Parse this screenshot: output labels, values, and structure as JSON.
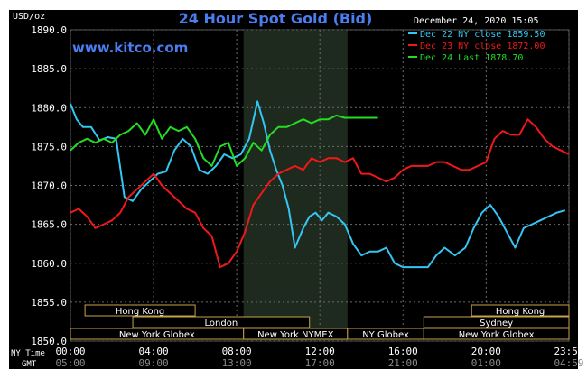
{
  "chart_data": {
    "type": "line",
    "title": "24 Hour Spot Gold (Bid)",
    "brand": "www.kitco.com",
    "ylabel": "USD/oz",
    "date_label": "December 24, 2020 15:05",
    "ylim": [
      1850,
      1890
    ],
    "y_ticks": [
      "1890.0",
      "1885.0",
      "1880.0",
      "1875.0",
      "1870.0",
      "1865.0",
      "1860.0",
      "1855.0",
      "1850.0"
    ],
    "x_row_ny_label": "NY Time",
    "x_row_gmt_label": "GMT",
    "x_ticks_ny": [
      "00:00",
      "04:00",
      "08:00",
      "12:00",
      "16:00",
      "20:00",
      "23:59"
    ],
    "x_ticks_gmt": [
      "05:00",
      "09:00",
      "13:00",
      "17:00",
      "21:00",
      "01:00",
      "04:59"
    ],
    "x_hours": [
      0,
      4,
      8,
      12,
      16,
      20,
      23.983
    ],
    "shaded_hours": [
      8.33,
      13.33
    ],
    "grid": true,
    "legend_position": "top-right",
    "sessions": [
      {
        "label": "Hong Kong",
        "start": 0.7,
        "end": 6.0,
        "row": 1
      },
      {
        "label": "Hong Kong",
        "start": 19.3,
        "end": 23.983,
        "row": 1
      },
      {
        "label": "London",
        "start": 3.0,
        "end": 11.5,
        "row": 2
      },
      {
        "label": "Sydney",
        "start": 17.0,
        "end": 23.983,
        "row": 2
      },
      {
        "label": "New York Globex",
        "start": 0.0,
        "end": 8.33,
        "row": 3
      },
      {
        "label": "New York NYMEX",
        "start": 8.33,
        "end": 13.33,
        "row": 3
      },
      {
        "label": "NY Globex",
        "start": 13.33,
        "end": 17.0,
        "row": 3
      },
      {
        "label": "New York Globex",
        "start": 17.0,
        "end": 23.983,
        "row": 3
      }
    ],
    "series": [
      {
        "name": "Dec 22 NY close 1859.50",
        "color": "#33c6f2",
        "x": [
          0,
          0.3,
          0.6,
          1.0,
          1.4,
          1.8,
          2.2,
          2.6,
          3.0,
          3.4,
          3.8,
          4.2,
          4.6,
          5.0,
          5.4,
          5.8,
          6.2,
          6.6,
          7.0,
          7.4,
          7.8,
          8.2,
          8.6,
          9.0,
          9.3,
          9.6,
          9.9,
          10.2,
          10.5,
          10.8,
          11.2,
          11.5,
          11.8,
          12.1,
          12.4,
          12.8,
          13.2,
          13.6,
          14.0,
          14.4,
          14.8,
          15.2,
          15.6,
          16.0,
          16.4,
          16.8,
          17.2,
          17.6,
          18.0,
          18.5,
          19.0,
          19.4,
          19.8,
          20.2,
          20.6,
          21.0,
          21.4,
          21.8,
          22.2,
          22.6,
          23.0,
          23.4,
          23.8
        ],
        "values": [
          1880.5,
          1878.5,
          1877.5,
          1877.5,
          1875.8,
          1876.2,
          1876.0,
          1868.5,
          1868.0,
          1869.5,
          1870.5,
          1871.5,
          1871.8,
          1874.5,
          1876.0,
          1875.0,
          1872.0,
          1871.5,
          1872.5,
          1874.0,
          1873.5,
          1874.0,
          1876.0,
          1880.8,
          1878.0,
          1874.5,
          1872.0,
          1870.0,
          1867.0,
          1862.0,
          1864.5,
          1866.0,
          1866.5,
          1865.5,
          1866.5,
          1866.0,
          1865.0,
          1862.5,
          1861.0,
          1861.5,
          1861.5,
          1862.0,
          1860.0,
          1859.5,
          1859.5,
          1859.5,
          1859.5,
          1861.0,
          1862.0,
          1861.0,
          1862.0,
          1864.5,
          1866.5,
          1867.5,
          1866.0,
          1864.0,
          1862.0,
          1864.5,
          1865.0,
          1865.5,
          1866.0,
          1866.5,
          1866.8
        ]
      },
      {
        "name": "Dec 23 NY close 1872.00",
        "color": "#f01818",
        "x": [
          0,
          0.4,
          0.8,
          1.2,
          1.6,
          2.0,
          2.4,
          2.8,
          3.2,
          3.6,
          4.0,
          4.4,
          4.8,
          5.2,
          5.6,
          6.0,
          6.4,
          6.8,
          7.2,
          7.6,
          8.0,
          8.4,
          8.8,
          9.2,
          9.6,
          10.0,
          10.4,
          10.8,
          11.2,
          11.6,
          12.0,
          12.4,
          12.8,
          13.2,
          13.6,
          14.0,
          14.4,
          14.8,
          15.2,
          15.6,
          16.0,
          16.4,
          16.8,
          17.2,
          17.6,
          18.0,
          18.4,
          18.8,
          19.2,
          19.6,
          20.0,
          20.4,
          20.8,
          21.2,
          21.6,
          22.0,
          22.4,
          22.8,
          23.2,
          23.6,
          23.983
        ],
        "values": [
          1866.5,
          1867.0,
          1866.0,
          1864.5,
          1865.0,
          1865.5,
          1866.5,
          1868.5,
          1869.5,
          1870.5,
          1871.5,
          1870.0,
          1869.0,
          1868.0,
          1867.0,
          1866.5,
          1864.5,
          1863.5,
          1859.5,
          1860.0,
          1861.5,
          1864.0,
          1867.5,
          1869.0,
          1870.5,
          1871.5,
          1872.0,
          1872.5,
          1872.0,
          1873.5,
          1873.0,
          1873.5,
          1873.5,
          1873.0,
          1873.5,
          1871.5,
          1871.5,
          1871.0,
          1870.5,
          1871.0,
          1872.0,
          1872.5,
          1872.5,
          1872.5,
          1873.0,
          1873.0,
          1872.5,
          1872.0,
          1872.0,
          1872.5,
          1873.0,
          1876.0,
          1877.0,
          1876.5,
          1876.5,
          1878.5,
          1877.5,
          1876.0,
          1875.0,
          1874.5,
          1874.0
        ]
      },
      {
        "name": "Dec 24 Last 1878.70",
        "color": "#22dd22",
        "x": [
          0,
          0.4,
          0.8,
          1.2,
          1.6,
          2.0,
          2.4,
          2.8,
          3.2,
          3.6,
          4.0,
          4.4,
          4.8,
          5.2,
          5.6,
          6.0,
          6.4,
          6.8,
          7.2,
          7.6,
          8.0,
          8.4,
          8.8,
          9.2,
          9.6,
          10.0,
          10.4,
          10.8,
          11.2,
          11.6,
          12.0,
          12.4,
          12.8,
          13.2,
          13.6,
          14.0,
          14.4,
          14.8
        ],
        "values": [
          1874.5,
          1875.5,
          1876.0,
          1875.5,
          1876.0,
          1875.5,
          1876.5,
          1877.0,
          1878.0,
          1876.5,
          1878.5,
          1876.0,
          1877.5,
          1877.0,
          1877.5,
          1876.0,
          1873.5,
          1872.5,
          1875.0,
          1875.5,
          1872.5,
          1873.5,
          1875.5,
          1874.5,
          1876.5,
          1877.5,
          1877.5,
          1878.0,
          1878.5,
          1878.0,
          1878.5,
          1878.5,
          1879.0,
          1878.7,
          1878.7,
          1878.7,
          1878.7,
          1878.7
        ]
      }
    ]
  }
}
